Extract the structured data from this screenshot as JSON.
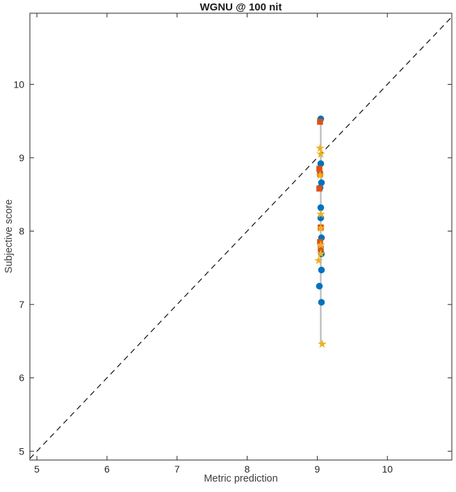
{
  "figure": {
    "background": "#ffffff"
  },
  "chart_data": {
    "type": "scatter",
    "title": "WGNU @ 100 nit",
    "xlabel": "Metric prediction",
    "ylabel": "Subjective score",
    "xlim": [
      4.9,
      10.92
    ],
    "ylim": [
      4.88,
      10.97
    ],
    "xticks": [
      5,
      6,
      7,
      8,
      9,
      10
    ],
    "yticks": [
      5,
      6,
      7,
      8,
      9,
      10
    ],
    "grid": false,
    "legend": "none",
    "axis_color": "#262626",
    "tick_label_color": "#262626",
    "identity_line": {
      "style": "dashed",
      "color": "#1a1a1a",
      "from": [
        4.9,
        4.9
      ],
      "to": [
        10.92,
        10.92
      ]
    },
    "connector_line": {
      "color": "#bebebe",
      "x": 9.05,
      "y_from": 6.46,
      "y_to": 9.53
    },
    "series": [
      {
        "name": "circles",
        "marker": "circle",
        "color": "#0072BD",
        "points": [
          [
            9.05,
            9.53
          ],
          [
            9.05,
            8.92
          ],
          [
            9.06,
            8.66
          ],
          [
            9.04,
            8.59
          ],
          [
            9.05,
            8.32
          ],
          [
            9.05,
            8.18
          ],
          [
            9.06,
            7.91
          ],
          [
            9.06,
            7.69
          ],
          [
            9.06,
            7.47
          ],
          [
            9.03,
            7.25
          ],
          [
            9.06,
            7.03
          ]
        ]
      },
      {
        "name": "squares",
        "marker": "square",
        "color": "#D95319",
        "points": [
          [
            9.04,
            9.49
          ],
          [
            9.03,
            8.85
          ],
          [
            9.04,
            8.78
          ],
          [
            9.03,
            8.58
          ],
          [
            9.05,
            8.05
          ],
          [
            9.04,
            7.85
          ],
          [
            9.05,
            7.76
          ]
        ]
      },
      {
        "name": "stars",
        "marker": "pentagram",
        "color": "#EDB120",
        "points": [
          [
            9.04,
            9.13
          ],
          [
            9.05,
            9.05
          ],
          [
            9.04,
            8.76
          ],
          [
            9.05,
            8.23
          ],
          [
            9.05,
            8.04
          ],
          [
            9.05,
            7.81
          ],
          [
            9.05,
            7.69
          ],
          [
            9.02,
            7.6
          ],
          [
            9.07,
            6.46
          ]
        ]
      }
    ]
  }
}
